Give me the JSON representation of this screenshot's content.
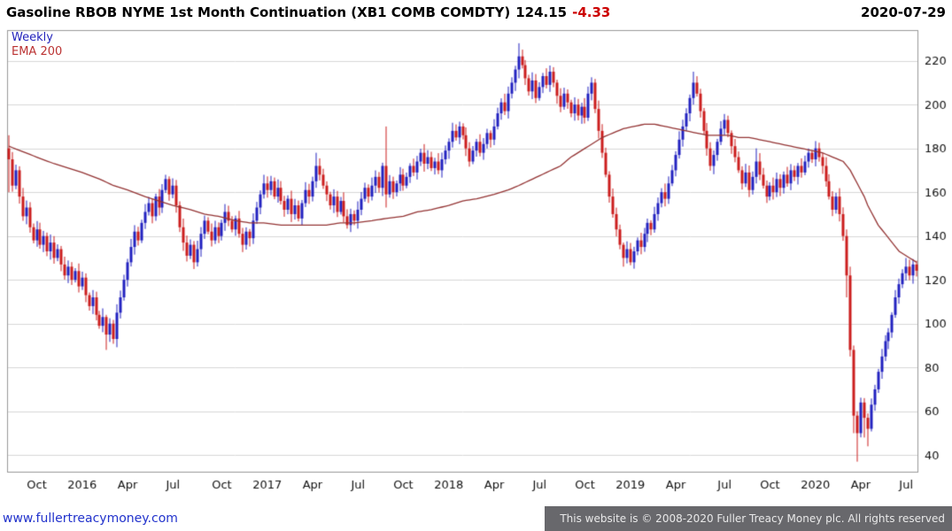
{
  "header": {
    "title": "Gasoline RBOB NYME 1st Month Continuation (XB1 COMB COMDTY)",
    "price": "124.15",
    "change": "-4.33",
    "date": "2020-07-29"
  },
  "legend": {
    "timeframe": "Weekly",
    "overlay": "EMA 200"
  },
  "footer": {
    "link": "www.fullertreacymoney.com",
    "copyright": "This website is © 2008-2020 Fuller Treacy Money plc. All rights reserved"
  },
  "colors": {
    "up": "#2222c0",
    "down": "#cc1f1f",
    "ema": "#943434",
    "grid": "#d8d8d8",
    "border": "#999999",
    "axis_text": "#111111",
    "legend_timeframe": "#2222bb",
    "legend_ema": "#bb3333",
    "change": "#cc0000",
    "link": "#2233cc",
    "footer_bg": "#68686c",
    "footer_text": "#e9e9e9"
  },
  "chart_data": {
    "type": "candlestick",
    "title": "Gasoline RBOB NYME 1st Month Continuation (XB1 COMB COMDTY)",
    "last_price": 124.15,
    "change": -4.33,
    "date": "2020-07-29",
    "timeframe": "Weekly",
    "overlay": "EMA 200",
    "ylim": [
      32,
      234
    ],
    "y_ticks": [
      220,
      200,
      180,
      160,
      140,
      120,
      100,
      80,
      60,
      40
    ],
    "x_ticks": [
      {
        "label": "Oct",
        "week": 8
      },
      {
        "label": "2016",
        "week": 21
      },
      {
        "label": "Apr",
        "week": 34
      },
      {
        "label": "Jul",
        "week": 47
      },
      {
        "label": "Oct",
        "week": 61
      },
      {
        "label": "2017",
        "week": 74
      },
      {
        "label": "Apr",
        "week": 87
      },
      {
        "label": "Jul",
        "week": 100
      },
      {
        "label": "Oct",
        "week": 113
      },
      {
        "label": "2018",
        "week": 126
      },
      {
        "label": "Apr",
        "week": 139
      },
      {
        "label": "Jul",
        "week": 152
      },
      {
        "label": "Oct",
        "week": 165
      },
      {
        "label": "2019",
        "week": 178
      },
      {
        "label": "Apr",
        "week": 191
      },
      {
        "label": "Jul",
        "week": 205
      },
      {
        "label": "Oct",
        "week": 218
      },
      {
        "label": "2020",
        "week": 231
      },
      {
        "label": "Apr",
        "week": 244
      },
      {
        "label": "Jul",
        "week": 257
      }
    ],
    "first_open": 180,
    "closes": [
      175,
      163,
      170,
      158,
      149,
      153,
      144,
      138,
      143,
      136,
      140,
      133,
      137,
      130,
      134,
      127,
      122,
      126,
      120,
      124,
      117,
      121,
      113,
      108,
      112,
      104,
      99,
      103,
      95,
      100,
      93,
      105,
      112,
      120,
      128,
      135,
      142,
      138,
      146,
      151,
      155,
      149,
      158,
      153,
      161,
      166,
      159,
      163,
      154,
      144,
      137,
      131,
      136,
      128,
      134,
      141,
      147,
      142,
      138,
      144,
      140,
      146,
      151,
      147,
      143,
      148,
      141,
      136,
      142,
      139,
      147,
      153,
      159,
      164,
      161,
      165,
      158,
      162,
      156,
      152,
      157,
      150,
      154,
      148,
      155,
      161,
      158,
      165,
      172,
      168,
      163,
      159,
      154,
      158,
      151,
      156,
      149,
      145,
      150,
      147,
      152,
      157,
      162,
      158,
      163,
      167,
      162,
      172,
      159,
      165,
      160,
      164,
      168,
      163,
      167,
      172,
      169,
      174,
      178,
      173,
      176,
      171,
      174,
      170,
      175,
      179,
      183,
      188,
      185,
      190,
      186,
      180,
      174,
      179,
      183,
      178,
      182,
      187,
      184,
      190,
      196,
      201,
      197,
      205,
      210,
      216,
      222,
      218,
      212,
      206,
      211,
      203,
      208,
      213,
      209,
      215,
      210,
      204,
      199,
      205,
      201,
      196,
      200,
      195,
      199,
      194,
      205,
      210,
      198,
      188,
      178,
      168,
      158,
      150,
      143,
      136,
      130,
      134,
      128,
      133,
      138,
      135,
      141,
      146,
      143,
      150,
      155,
      160,
      157,
      164,
      170,
      177,
      184,
      190,
      196,
      203,
      210,
      205,
      197,
      188,
      180,
      172,
      177,
      183,
      189,
      193,
      187,
      181,
      176,
      170,
      164,
      169,
      161,
      167,
      174,
      168,
      163,
      158,
      163,
      160,
      166,
      162,
      168,
      164,
      170,
      167,
      172,
      169,
      174,
      178,
      175,
      180,
      176,
      172,
      165,
      158,
      152,
      158,
      150,
      140,
      122,
      88,
      58,
      50,
      64,
      57,
      52,
      63,
      70,
      78,
      85,
      92,
      96,
      104,
      112,
      118,
      123,
      126,
      122,
      127,
      124.15
    ],
    "wick_overrides": {
      "0": [
        186,
        160
      ],
      "28": [
        104,
        88
      ],
      "88": [
        178,
        162
      ],
      "108": [
        190,
        153
      ],
      "146": [
        228,
        212
      ],
      "176": [
        137,
        126
      ],
      "196": [
        215,
        200
      ],
      "214": [
        180,
        164
      ],
      "240": [
        143,
        112
      ],
      "241": [
        126,
        85
      ],
      "242": [
        90,
        50
      ],
      "243": [
        60,
        37
      ],
      "245": [
        66,
        48
      ],
      "246": [
        59,
        44
      ]
    },
    "ema_anchors": [
      [
        0,
        181
      ],
      [
        8,
        176
      ],
      [
        13,
        173
      ],
      [
        21,
        169
      ],
      [
        26,
        166
      ],
      [
        30,
        163
      ],
      [
        34,
        161
      ],
      [
        39,
        158
      ],
      [
        43,
        156
      ],
      [
        47,
        154
      ],
      [
        52,
        152
      ],
      [
        56,
        150
      ],
      [
        60,
        149
      ],
      [
        65,
        147
      ],
      [
        69,
        146
      ],
      [
        73,
        146
      ],
      [
        78,
        145
      ],
      [
        82,
        145
      ],
      [
        86,
        145
      ],
      [
        91,
        145
      ],
      [
        95,
        146
      ],
      [
        99,
        146
      ],
      [
        104,
        147
      ],
      [
        108,
        148
      ],
      [
        113,
        149
      ],
      [
        117,
        151
      ],
      [
        121,
        152
      ],
      [
        126,
        154
      ],
      [
        130,
        156
      ],
      [
        134,
        157
      ],
      [
        139,
        159
      ],
      [
        143,
        161
      ],
      [
        146,
        163
      ],
      [
        150,
        166
      ],
      [
        154,
        169
      ],
      [
        158,
        172
      ],
      [
        161,
        176
      ],
      [
        164,
        179
      ],
      [
        167,
        182
      ],
      [
        170,
        185
      ],
      [
        173,
        187
      ],
      [
        176,
        189
      ],
      [
        179,
        190
      ],
      [
        182,
        191
      ],
      [
        185,
        191
      ],
      [
        188,
        190
      ],
      [
        191,
        189
      ],
      [
        194,
        188
      ],
      [
        197,
        187
      ],
      [
        200,
        186
      ],
      [
        203,
        186
      ],
      [
        206,
        186
      ],
      [
        209,
        185
      ],
      [
        212,
        185
      ],
      [
        215,
        184
      ],
      [
        218,
        183
      ],
      [
        221,
        182
      ],
      [
        224,
        181
      ],
      [
        227,
        180
      ],
      [
        230,
        179
      ],
      [
        233,
        178
      ],
      [
        236,
        176
      ],
      [
        239,
        174
      ],
      [
        241,
        170
      ],
      [
        242,
        167
      ],
      [
        243,
        164
      ],
      [
        244,
        161
      ],
      [
        245,
        158
      ],
      [
        246,
        154
      ],
      [
        247,
        151
      ],
      [
        248,
        148
      ],
      [
        249,
        145
      ],
      [
        250,
        143
      ],
      [
        251,
        141
      ],
      [
        252,
        139
      ],
      [
        253,
        137
      ],
      [
        254,
        135
      ],
      [
        255,
        133
      ],
      [
        256,
        132
      ],
      [
        257,
        131
      ],
      [
        258,
        130
      ],
      [
        259,
        129
      ],
      [
        260,
        128
      ]
    ]
  }
}
